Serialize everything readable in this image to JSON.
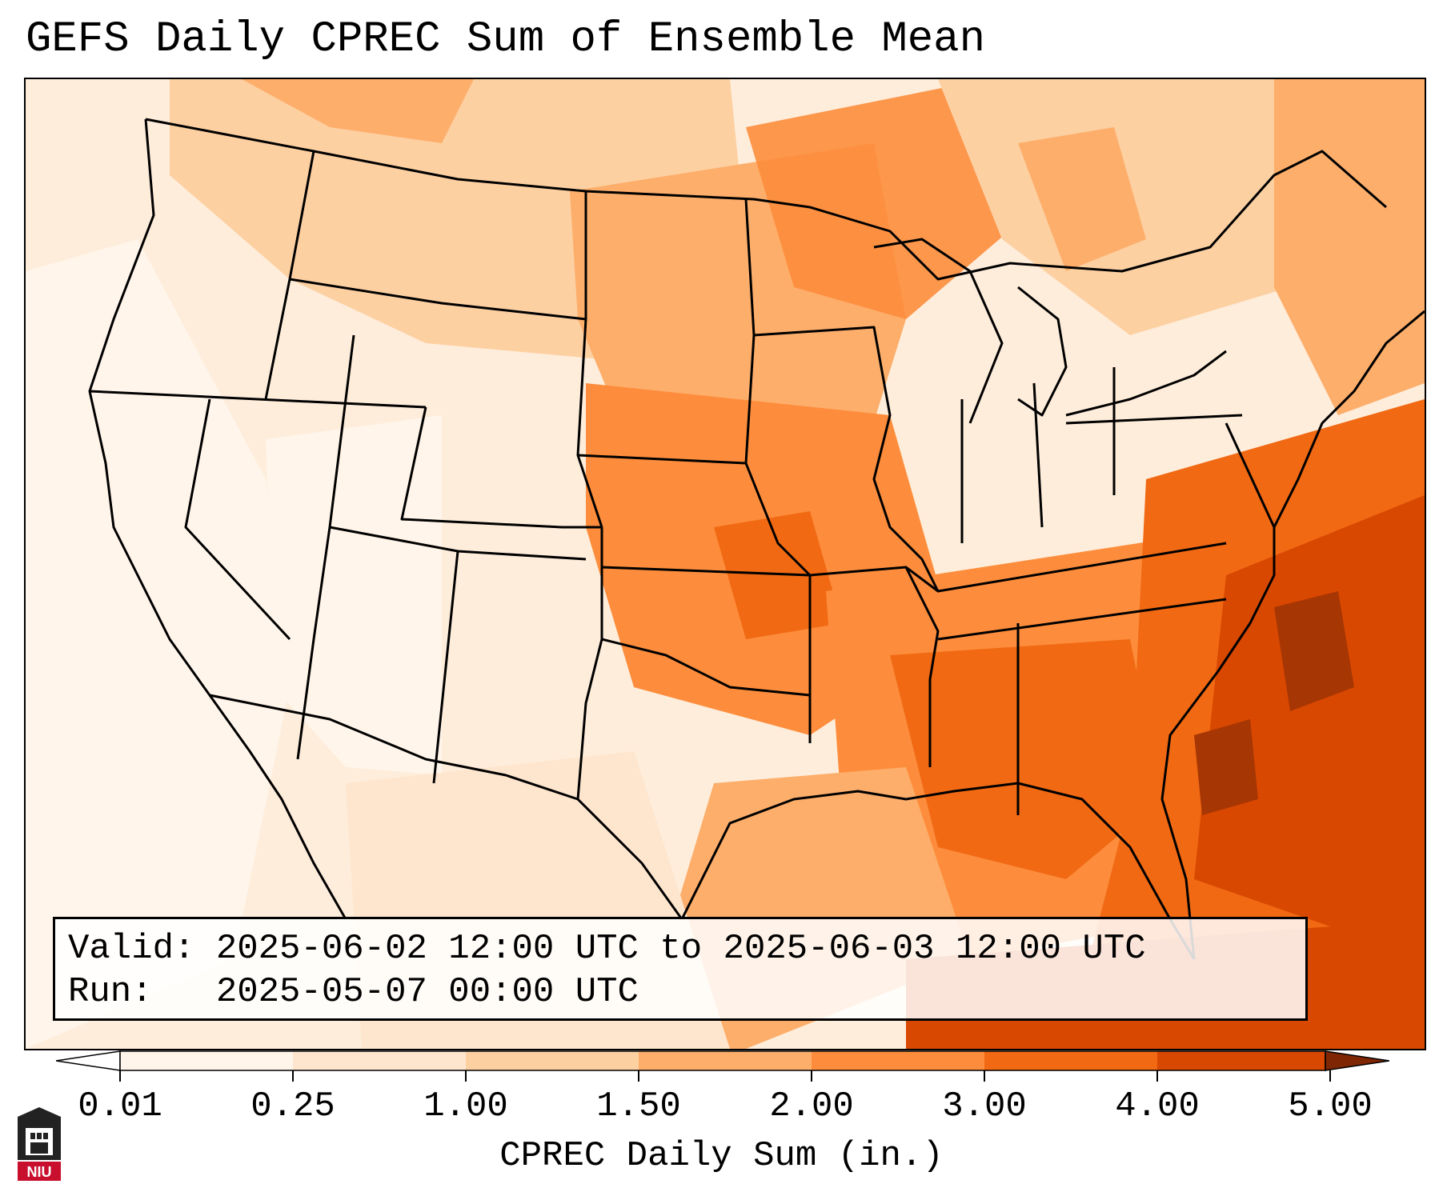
{
  "header": {
    "title": "GEFS Daily CPREC Sum of Ensemble Mean"
  },
  "info": {
    "valid_label": "Valid:",
    "valid_value": "2025-06-02 12:00 UTC to 2025-06-03 12:00 UTC",
    "run_label": "Run:",
    "run_value": "2025-05-07 00:00 UTC"
  },
  "colorbar": {
    "label": "CPREC Daily Sum (in.)",
    "ticks": [
      "0.01",
      "0.25",
      "1.00",
      "1.50",
      "2.00",
      "3.00",
      "4.00",
      "5.00"
    ],
    "colors": [
      "#fff5eb",
      "#fee6ce",
      "#fdd0a2",
      "#fdae6b",
      "#fd8d3c",
      "#f16913",
      "#d94801",
      "#a63603",
      "#7f2704"
    ]
  },
  "logo": {
    "icon": "niu-logo-icon",
    "text": "NIU"
  }
}
